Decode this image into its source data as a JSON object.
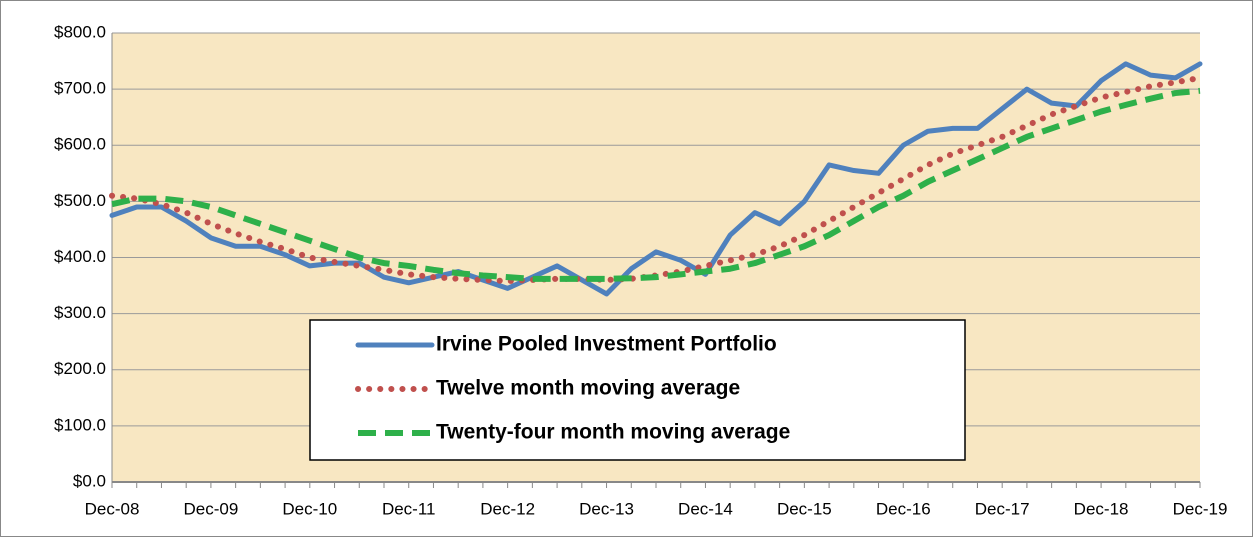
{
  "chart_data": {
    "type": "line",
    "categories": [
      "Dec-08",
      null,
      null,
      null,
      "Dec-09",
      null,
      null,
      null,
      "Dec-10",
      null,
      null,
      null,
      "Dec-11",
      null,
      null,
      null,
      "Dec-12",
      null,
      null,
      null,
      "Dec-13",
      null,
      null,
      null,
      "Dec-14",
      null,
      null,
      null,
      "Dec-15",
      null,
      null,
      null,
      "Dec-16",
      null,
      null,
      null,
      "Dec-17",
      null,
      null,
      null,
      "Dec-18",
      null,
      null,
      null,
      "Dec-19"
    ],
    "series": [
      {
        "name": "Irvine Pooled Investment Portfolio",
        "color": "#4f81bd",
        "style": "solid",
        "values": [
          475,
          490,
          490,
          465,
          435,
          420,
          420,
          405,
          385,
          390,
          390,
          365,
          355,
          365,
          375,
          360,
          345,
          365,
          385,
          360,
          335,
          380,
          410,
          395,
          370,
          440,
          480,
          460,
          500,
          565,
          555,
          550,
          600,
          625,
          630,
          630,
          665,
          700,
          675,
          670,
          715,
          745,
          725,
          720,
          745
        ]
      },
      {
        "name": "Twelve month moving average",
        "color": "#c0504d",
        "style": "dotted",
        "values": [
          510,
          505,
          495,
          480,
          460,
          443,
          428,
          415,
          400,
          392,
          385,
          378,
          370,
          365,
          362,
          360,
          358,
          360,
          362,
          362,
          360,
          362,
          368,
          375,
          385,
          395,
          405,
          420,
          440,
          465,
          490,
          515,
          540,
          565,
          585,
          600,
          615,
          635,
          655,
          670,
          685,
          695,
          705,
          712,
          720
        ]
      },
      {
        "name": "Twenty-four month moving average",
        "color": "#2eb04a",
        "style": "dashed",
        "values": [
          495,
          505,
          505,
          500,
          490,
          475,
          460,
          445,
          430,
          415,
          400,
          390,
          385,
          378,
          372,
          368,
          365,
          362,
          362,
          362,
          362,
          363,
          365,
          370,
          375,
          380,
          390,
          405,
          420,
          440,
          465,
          490,
          510,
          535,
          555,
          575,
          595,
          615,
          630,
          645,
          660,
          672,
          683,
          693,
          697
        ]
      }
    ],
    "ylim": [
      0,
      800
    ],
    "yticks": [
      {
        "value": 0,
        "label": "$0.0"
      },
      {
        "value": 100,
        "label": "$100.0"
      },
      {
        "value": 200,
        "label": "$200.0"
      },
      {
        "value": 300,
        "label": "$300.0"
      },
      {
        "value": 400,
        "label": "$400.0"
      },
      {
        "value": 500,
        "label": "$500.0"
      },
      {
        "value": 600,
        "label": "$600.0"
      },
      {
        "value": 700,
        "label": "$700.0"
      },
      {
        "value": 800,
        "label": "$800.0"
      }
    ],
    "grid": true
  }
}
